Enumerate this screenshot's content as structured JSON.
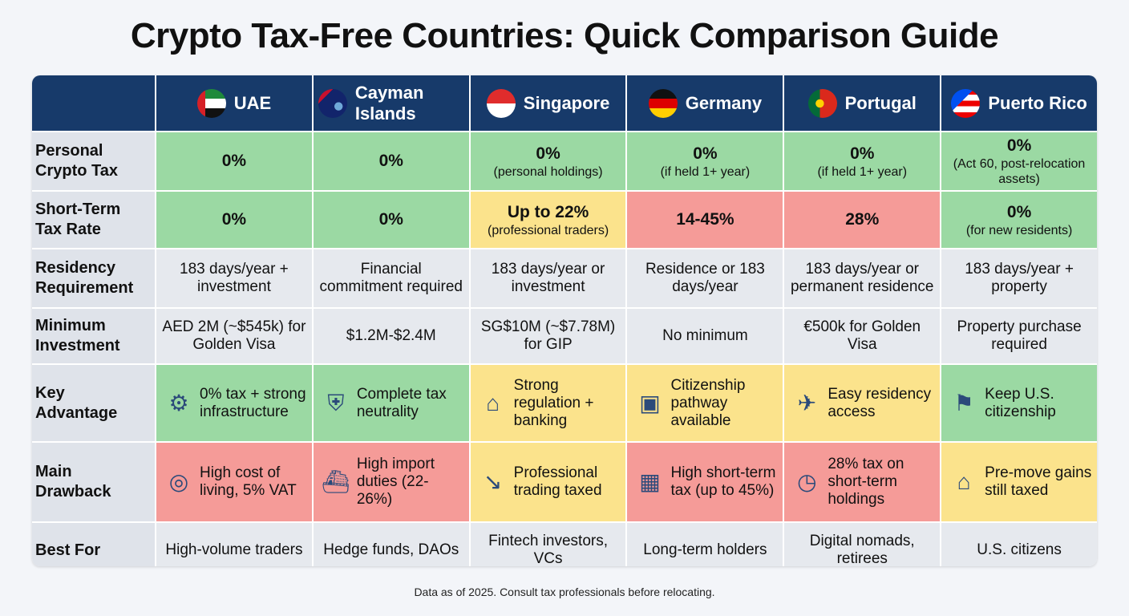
{
  "title": "Crypto Tax-Free Countries: Quick Comparison Guide",
  "footer": "Data as of 2025. Consult tax professionals before relocating.",
  "colors": {
    "header": "#173a6a",
    "green": "#9bd9a3",
    "yellow": "#fbe38c",
    "red": "#f59b98",
    "neutral": "#e6e9ee"
  },
  "countries": [
    {
      "name": "UAE",
      "flag": "uae-flag"
    },
    {
      "name": "Cayman Islands",
      "flag": "cayman-flag"
    },
    {
      "name": "Singapore",
      "flag": "singapore-flag"
    },
    {
      "name": "Germany",
      "flag": "germany-flag"
    },
    {
      "name": "Portugal",
      "flag": "portugal-flag"
    },
    {
      "name": "Puerto Rico",
      "flag": "puerto-rico-flag"
    }
  ],
  "rows": [
    {
      "label": "Personal Crypto Tax",
      "type": "rate",
      "cells": [
        {
          "main": "0%",
          "sub": "",
          "color": "green"
        },
        {
          "main": "0%",
          "sub": "",
          "color": "green"
        },
        {
          "main": "0%",
          "sub": "(personal holdings)",
          "color": "green"
        },
        {
          "main": "0%",
          "sub": "(if held 1+ year)",
          "color": "green"
        },
        {
          "main": "0%",
          "sub": "(if held 1+ year)",
          "color": "green"
        },
        {
          "main": "0%",
          "sub": "(Act 60, post-relocation assets)",
          "color": "green"
        }
      ]
    },
    {
      "label": "Short-Term Tax Rate",
      "type": "rate",
      "cells": [
        {
          "main": "0%",
          "sub": "",
          "color": "green"
        },
        {
          "main": "0%",
          "sub": "",
          "color": "green"
        },
        {
          "main": "Up to 22%",
          "sub": "(professional traders)",
          "color": "yellow"
        },
        {
          "main": "14-45%",
          "sub": "",
          "color": "red"
        },
        {
          "main": "28%",
          "sub": "",
          "color": "red"
        },
        {
          "main": "0%",
          "sub": "(for new residents)",
          "color": "green"
        }
      ]
    },
    {
      "label": "Residency Requirement",
      "type": "text",
      "cells": [
        {
          "text": "183 days/year + investment",
          "color": "grey"
        },
        {
          "text": "Financial commitment required",
          "color": "grey"
        },
        {
          "text": "183 days/year or investment",
          "color": "grey"
        },
        {
          "text": "Residence or 183 days/year",
          "color": "grey"
        },
        {
          "text": "183 days/year or permanent residence",
          "color": "grey"
        },
        {
          "text": "183 days/year + property",
          "color": "grey"
        }
      ]
    },
    {
      "label": "Minimum Investment",
      "type": "text",
      "cells": [
        {
          "text": "AED 2M (~$545k) for Golden Visa",
          "color": "grey"
        },
        {
          "text": "$1.2M-$2.4M",
          "color": "grey"
        },
        {
          "text": "SG$10M (~$7.78M) for GIP",
          "color": "grey"
        },
        {
          "text": "No minimum",
          "color": "grey"
        },
        {
          "text": "€500k for Golden Visa",
          "color": "grey"
        },
        {
          "text": "Property purchase required",
          "color": "grey"
        }
      ]
    },
    {
      "label": "Key Advantage",
      "type": "icon",
      "cells": [
        {
          "text": "0% tax + strong infrastructure",
          "icon": "growth-chart-icon",
          "glyph": "⚙",
          "color": "green"
        },
        {
          "text": "Complete tax neutrality",
          "icon": "shield-check-icon",
          "glyph": "⛨",
          "color": "green"
        },
        {
          "text": "Strong regulation + banking",
          "icon": "bank-icon",
          "glyph": "⌂",
          "color": "yellow"
        },
        {
          "text": "Citizenship pathway available",
          "icon": "passport-icon",
          "glyph": "▣",
          "color": "yellow"
        },
        {
          "text": "Easy residency access",
          "icon": "traveler-icon",
          "glyph": "✈",
          "color": "yellow"
        },
        {
          "text": "Keep U.S. citizenship",
          "icon": "us-flag-icon",
          "glyph": "⚑",
          "color": "green"
        }
      ]
    },
    {
      "label": "Main Drawback",
      "type": "icon",
      "cells": [
        {
          "text": "High cost of living, 5% VAT",
          "icon": "coins-icon",
          "glyph": "◎",
          "color": "red"
        },
        {
          "text": "High import duties (22-26%)",
          "icon": "cargo-ship-icon",
          "glyph": "⛴",
          "color": "red"
        },
        {
          "text": "Professional trading taxed",
          "icon": "declining-chart-icon",
          "glyph": "↘",
          "color": "yellow"
        },
        {
          "text": "High short-term tax (up to 45%)",
          "icon": "calculator-icon",
          "glyph": "▦",
          "color": "red"
        },
        {
          "text": "28% tax on short-term holdings",
          "icon": "stopwatch-icon",
          "glyph": "◷",
          "color": "red"
        },
        {
          "text": "Pre-move gains still taxed",
          "icon": "house-tax-icon",
          "glyph": "⌂",
          "color": "yellow"
        }
      ]
    },
    {
      "label": "Best For",
      "type": "text",
      "cells": [
        {
          "text": "High-volume traders",
          "color": "grey"
        },
        {
          "text": "Hedge funds, DAOs",
          "color": "grey"
        },
        {
          "text": "Fintech investors, VCs",
          "color": "grey"
        },
        {
          "text": "Long-term holders",
          "color": "grey"
        },
        {
          "text": "Digital nomads, retirees",
          "color": "grey"
        },
        {
          "text": "U.S. citizens",
          "color": "grey"
        }
      ]
    }
  ]
}
